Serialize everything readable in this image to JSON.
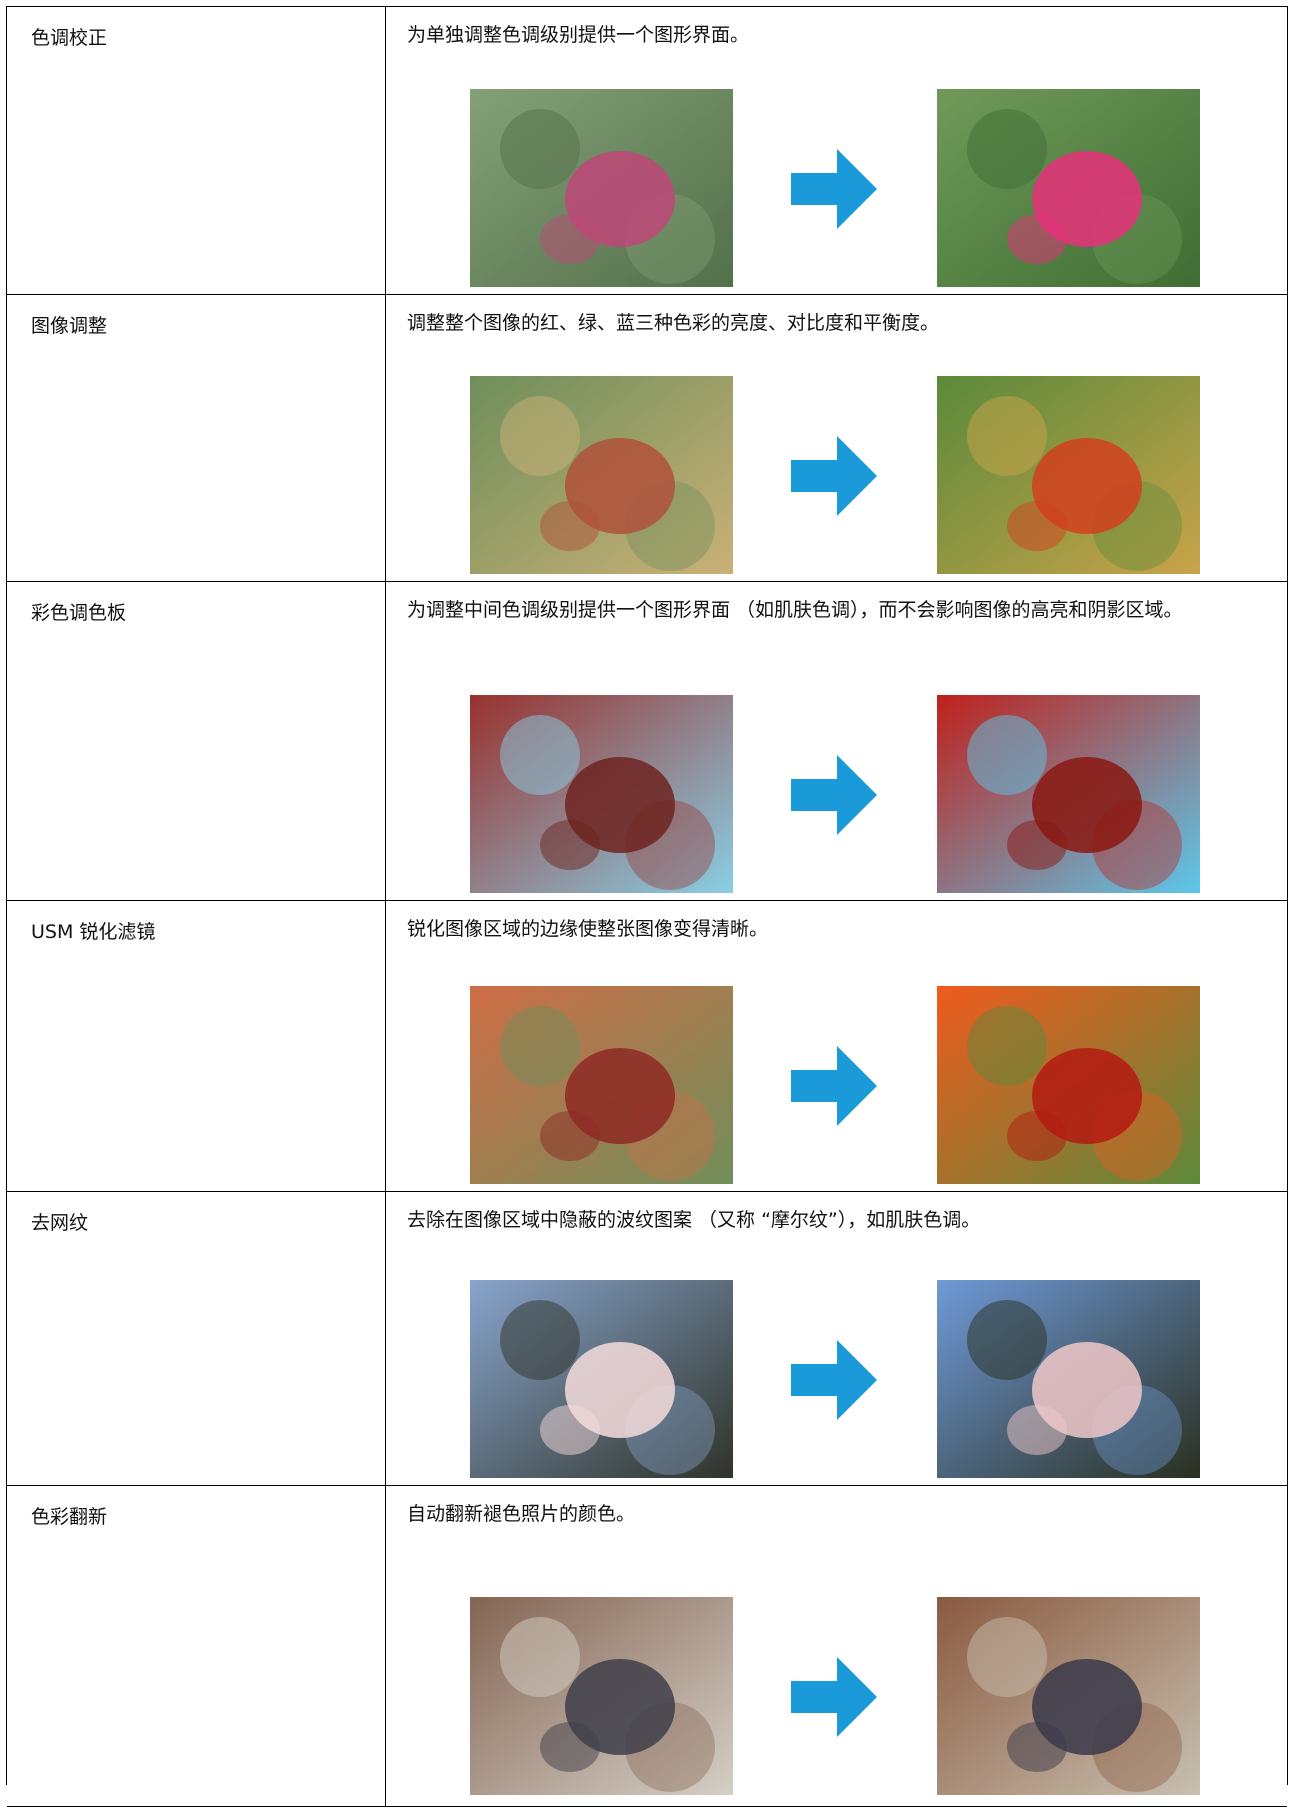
{
  "table": {
    "rows": [
      {
        "name": "色调校正",
        "description": "为单独调整色调级别提供一个图形界面。"
      },
      {
        "name": "图像调整",
        "description": "调整整个图像的红、绿、蓝三种色彩的亮度、对比度和平衡度。"
      },
      {
        "name": "彩色调色板",
        "description": "为调整中间色调级别提供一个图形界面 （如肌肤色调），而不会影响图像的高亮和阴影区域。"
      },
      {
        "name": "USM 锐化滤镜",
        "description": "锐化图像区域的边缘使整张图像变得清晰。"
      },
      {
        "name": "去网纹",
        "description": "去除在图像区域中隐蔽的波纹图案 （又称 “摩尔纹”），如肌肤色调。"
      },
      {
        "name": "色彩翻新",
        "description": "自动翻新褪色照片的颜色。"
      }
    ]
  }
}
